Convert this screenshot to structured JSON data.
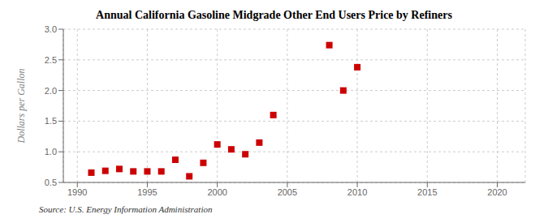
{
  "chart_data": {
    "type": "scatter",
    "title": "Annual California Gasoline Midgrade Other End Users Price by Refiners",
    "ylabel": "Dollars per Gallon",
    "source": "Source: U.S. Energy Information Administration",
    "x": [
      1991,
      1992,
      1993,
      1994,
      1995,
      1996,
      1997,
      1998,
      1999,
      2000,
      2001,
      2002,
      2003,
      2004,
      2008,
      2009,
      2010
    ],
    "values": [
      0.66,
      0.69,
      0.72,
      0.68,
      0.68,
      0.68,
      0.87,
      0.6,
      0.82,
      1.12,
      1.04,
      0.96,
      1.15,
      1.6,
      2.74,
      2.0,
      2.38
    ],
    "color": "#cc0000",
    "marker": "square",
    "xlim": [
      1989,
      2022
    ],
    "ylim": [
      0.5,
      3.0
    ],
    "xticks": [
      1990,
      1995,
      2000,
      2005,
      2010,
      2015,
      2020
    ],
    "yticks": [
      0.5,
      {
        "value": 1,
        "label": "1.0"
      },
      1.5,
      {
        "value": 2,
        "label": "2.0"
      },
      2.5,
      {
        "value": 3,
        "label": "3.0"
      }
    ],
    "grid": true
  }
}
